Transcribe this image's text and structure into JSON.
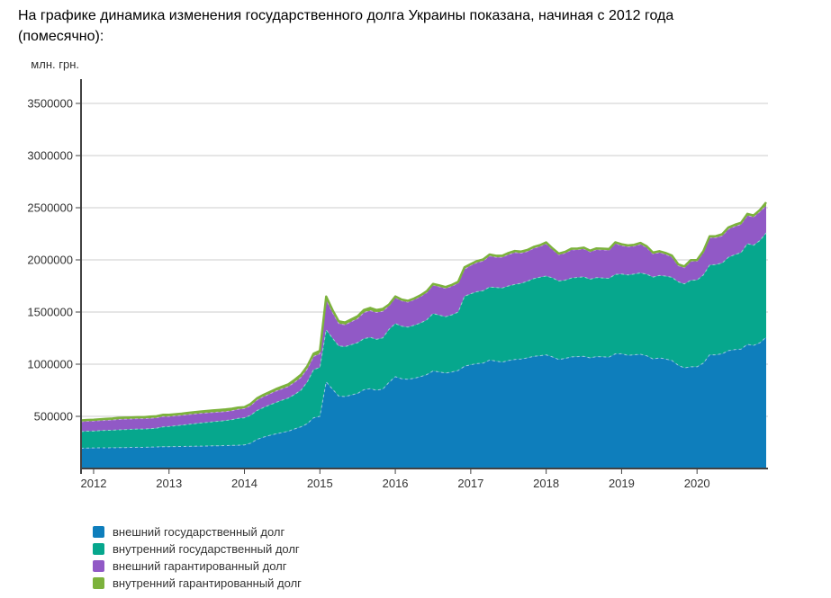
{
  "page": {
    "title_line1": "На графике динамика изменения государственного долга Украины показана, начиная с 2012 года",
    "title_line2": "(помесячно):"
  },
  "chart_data": {
    "type": "area",
    "stacked": true,
    "title": "",
    "unit_label": "млн. грн.",
    "grid": true,
    "legend_position": "bottom-left",
    "axis_color": "#424242",
    "grid_color": "#cccccc",
    "label_color": "#333333",
    "x_range": [
      "2011-11",
      "2020-12"
    ],
    "x_monthly": true,
    "x_tick_labels": [
      "2012",
      "2013",
      "2014",
      "2015",
      "2016",
      "2017",
      "2018",
      "2019",
      "2020"
    ],
    "x_tick_month_indices": [
      2,
      14,
      26,
      38,
      50,
      62,
      74,
      86,
      98
    ],
    "y_ticks": [
      500000,
      1000000,
      1500000,
      2000000,
      2500000,
      3000000,
      3500000
    ],
    "y_tick_labels": [
      "500000",
      "1000000",
      "1500000",
      "2000000",
      "2500000",
      "3000000",
      "3500000"
    ],
    "ylim": [
      0,
      3730000
    ],
    "series": [
      {
        "name": "внешний государственный долг",
        "color": "#0E7EBC",
        "edge": "#9CC8E2",
        "edge_dash": "3 3",
        "edge_width": 1,
        "values": [
          194000,
          196000,
          197000,
          198000,
          198500,
          199000,
          200000,
          201000,
          202500,
          203500,
          203000,
          205000,
          207000,
          208900,
          209500,
          210500,
          211500,
          212500,
          213500,
          214500,
          215500,
          217000,
          218500,
          220000,
          221500,
          223300,
          226000,
          243000,
          279000,
          300000,
          317000,
          332000,
          345000,
          358000,
          380000,
          400000,
          430000,
          486000,
          500000,
          830000,
          760000,
          695000,
          690000,
          705000,
          720000,
          755000,
          765000,
          750000,
          760000,
          826300,
          880000,
          860000,
          855000,
          865000,
          880000,
          900000,
          935000,
          925000,
          915000,
          925000,
          940000,
          980200,
          995000,
          1005000,
          1010000,
          1040000,
          1030000,
          1020000,
          1035000,
          1045000,
          1050000,
          1060000,
          1075000,
          1080300,
          1090000,
          1070000,
          1045000,
          1055000,
          1070000,
          1072000,
          1075000,
          1060000,
          1072000,
          1070000,
          1068000,
          1099200,
          1100000,
          1085000,
          1090000,
          1095000,
          1080000,
          1050000,
          1060000,
          1050000,
          1035000,
          990000,
          965000,
          974800,
          975000,
          1010000,
          1090000,
          1090000,
          1100000,
          1130000,
          1140000,
          1145000,
          1190000,
          1180000,
          1205000,
          1258500
        ]
      },
      {
        "name": "внутренний государственный долг",
        "color": "#06A78D",
        "edge": "#8ED8C9",
        "edge_dash": "3 3",
        "edge_width": 1,
        "values": [
          160000,
          161500,
          162000,
          165000,
          167000,
          168000,
          171000,
          172000,
          173000,
          175000,
          175500,
          177000,
          180000,
          190300,
          193000,
          199000,
          204000,
          210000,
          216000,
          222000,
          226000,
          231000,
          235000,
          240000,
          247000,
          257000,
          260000,
          268000,
          277000,
          284000,
          292000,
          301000,
          310000,
          318000,
          330000,
          352000,
          400000,
          461000,
          470000,
          500000,
          490000,
          480000,
          478000,
          482000,
          486000,
          490000,
          493000,
          488000,
          492000,
          508000,
          510000,
          505000,
          500000,
          508000,
          515000,
          525000,
          550000,
          545000,
          540000,
          548000,
          560000,
          670600,
          680000,
          690000,
          695000,
          700000,
          705000,
          710000,
          715000,
          720000,
          725000,
          735000,
          745000,
          753400,
          755000,
          758000,
          752000,
          750000,
          756000,
          760000,
          762000,
          755000,
          758000,
          757000,
          755000,
          761100,
          765000,
          770000,
          775000,
          780000,
          782000,
          785000,
          790000,
          795000,
          798000,
          800000,
          805000,
          829500,
          832000,
          845000,
          860000,
          865000,
          870000,
          895000,
          910000,
          925000,
          965000,
          960000,
          980000,
          1000500
        ]
      },
      {
        "name": "внешний гарантированный долг",
        "color": "#9159C6",
        "edge": "#C9A6E4",
        "edge_dash": "3 3",
        "edge_width": 1,
        "values": [
          95000,
          95500,
          96000,
          96000,
          97000,
          98000,
          100000,
          100000,
          99000,
          99000,
          99000,
          99000,
          98000,
          99000,
          96000,
          95000,
          94000,
          94000,
          93000,
          92000,
          91000,
          89000,
          88000,
          86000,
          85000,
          87300,
          88000,
          92000,
          100000,
          104000,
          105000,
          108000,
          109000,
          110000,
          118000,
          122000,
          124000,
          126300,
          130000,
          290000,
          245000,
          215000,
          210000,
          220000,
          230000,
          250000,
          255000,
          258000,
          255000,
          226300,
          248000,
          243000,
          240000,
          245000,
          252000,
          262000,
          272000,
          272000,
          272000,
          274000,
          277000,
          259000,
          272000,
          280000,
          285000,
          298000,
          290000,
          295000,
          300000,
          305000,
          290000,
          285000,
          290000,
          294700,
          310000,
          272000,
          252000,
          260000,
          270000,
          265000,
          268000,
          262000,
          268000,
          269000,
          270000,
          297800,
          272000,
          271000,
          267000,
          275000,
          255000,
          222000,
          221000,
          208000,
          195000,
          155000,
          154000,
          181800,
          180000,
          215000,
          262000,
          258000,
          260000,
          270000,
          270000,
          270000,
          270000,
          270000,
          277000,
          259500
        ]
      },
      {
        "name": "внутренний гарантированный долг",
        "color": "#7CB23C",
        "edge": "#7CB23C",
        "edge_dash": "",
        "edge_width": 2.5,
        "values": [
          12000,
          12200,
          13000,
          13000,
          14000,
          14000,
          15000,
          15000,
          15000,
          15000,
          15000,
          16000,
          16000,
          16200,
          16000,
          16000,
          16000,
          17000,
          17000,
          18000,
          19000,
          20000,
          20000,
          20000,
          20000,
          16700,
          15000,
          17000,
          17000,
          18000,
          19000,
          20000,
          21000,
          22000,
          24000,
          26000,
          27000,
          27900,
          28000,
          28000,
          25000,
          22000,
          22000,
          23000,
          24000,
          25000,
          27000,
          24000,
          23000,
          12100,
          12000,
          12000,
          13000,
          12000,
          13000,
          13000,
          13000,
          13000,
          13000,
          13000,
          13000,
          19100,
          13000,
          14000,
          15000,
          14000,
          15000,
          15000,
          16000,
          15000,
          15000,
          15000,
          14000,
          13300,
          13000,
          11000,
          11000,
          12000,
          12000,
          12000,
          12000,
          12000,
          12000,
          12000,
          11000,
          10300,
          13000,
          13000,
          13000,
          13000,
          13000,
          13000,
          13000,
          13000,
          13000,
          13000,
          13000,
          12300,
          12000,
          13000,
          14000,
          15000,
          16000,
          16000,
          16000,
          16000,
          16000,
          16000,
          16000,
          33300
        ]
      }
    ]
  }
}
